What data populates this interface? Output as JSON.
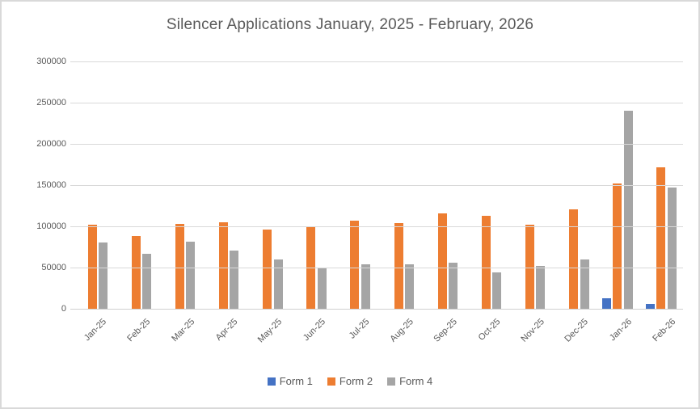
{
  "chart_data": {
    "type": "bar",
    "title": "Silencer Applications January, 2025 - February, 2026",
    "categories": [
      "Jan-25",
      "Feb-25",
      "Mar-25",
      "Apr-25",
      "May-25",
      "Jun-25",
      "Jul-25",
      "Aug-25",
      "Sep-25",
      "Oct-25",
      "Nov-25",
      "Dec-25",
      "Jan-26",
      "Feb-26"
    ],
    "series": [
      {
        "name": "Form 1",
        "color": "#4472C4",
        "values": [
          0,
          0,
          0,
          0,
          0,
          0,
          0,
          0,
          0,
          0,
          0,
          0,
          13000,
          6000
        ]
      },
      {
        "name": "Form 2",
        "color": "#ED7D31",
        "values": [
          102000,
          88000,
          103000,
          105000,
          96000,
          100000,
          107000,
          104000,
          116000,
          113000,
          102000,
          121000,
          152000,
          172000
        ]
      },
      {
        "name": "Form 4",
        "color": "#A5A5A5",
        "values": [
          80000,
          67000,
          81000,
          71000,
          60000,
          50000,
          54000,
          54000,
          56000,
          44000,
          52000,
          60000,
          240000,
          147000
        ]
      }
    ],
    "xlabel": "",
    "ylabel": "",
    "ylim": [
      0,
      300000
    ],
    "ytick_interval": 50000,
    "yticks": [
      "0",
      "50000",
      "100000",
      "150000",
      "200000",
      "250000",
      "300000"
    ],
    "grid": true,
    "legend_position": "bottom",
    "gridline_color": "#D9D9D9",
    "text_color": "#595959"
  }
}
